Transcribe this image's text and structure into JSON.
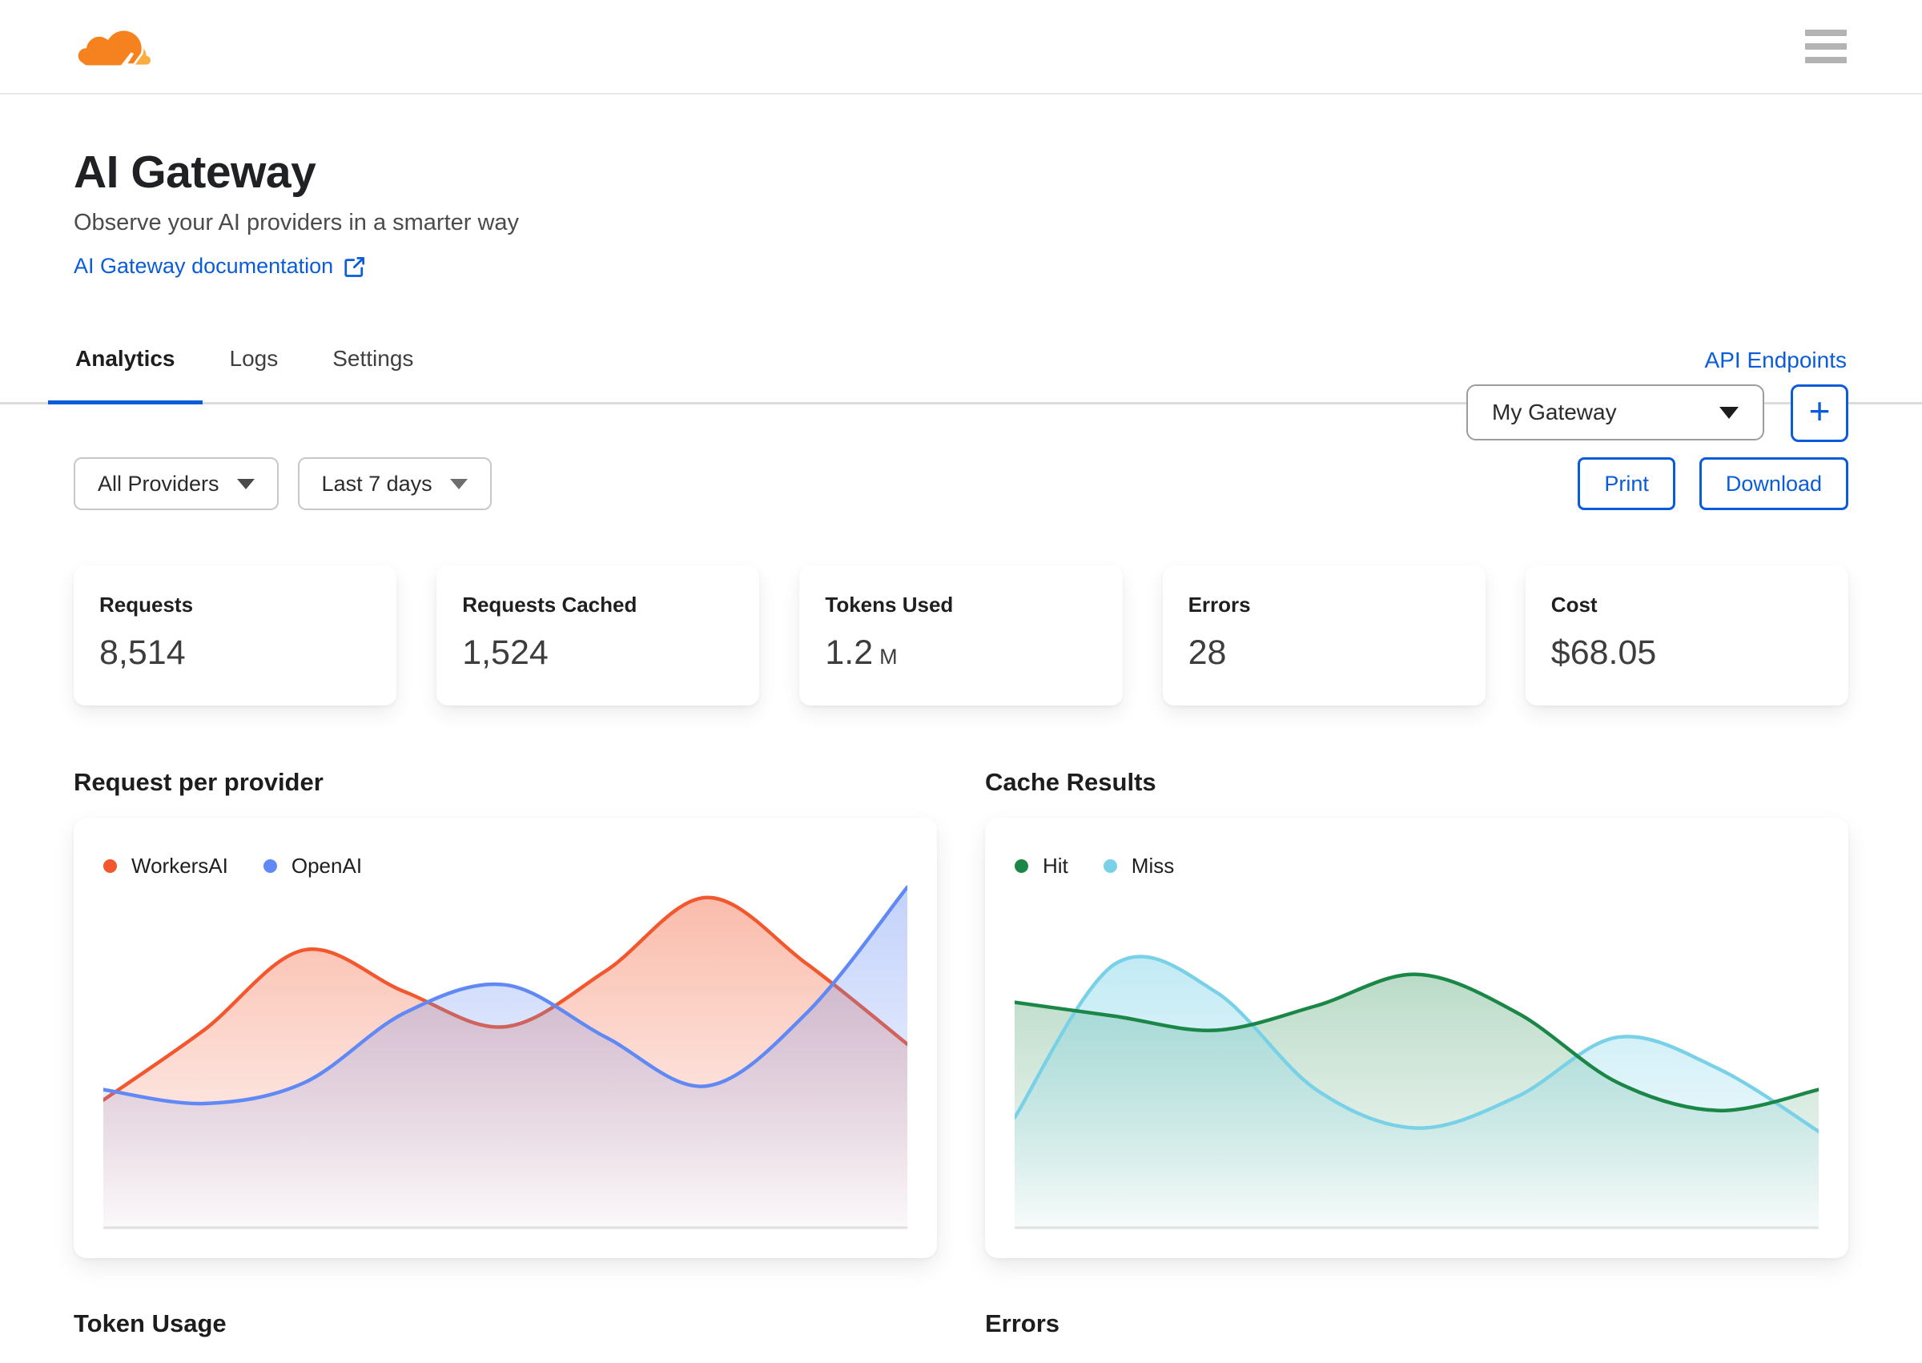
{
  "header": {
    "logo": "cloudflare-logo",
    "menu": "hamburger-menu"
  },
  "page": {
    "title": "AI Gateway",
    "subtitle": "Observe your AI providers in a smarter way",
    "doc_link_label": "AI Gateway documentation"
  },
  "gateway_selector": {
    "selected": "My Gateway"
  },
  "add_gateway_label": "+",
  "tabs": {
    "analytics": "Analytics",
    "logs": "Logs",
    "settings": "Settings",
    "api_endpoints": "API Endpoints"
  },
  "filters": {
    "providers": "All Providers",
    "date_range": "Last 7 days"
  },
  "actions": {
    "print": "Print",
    "download": "Download"
  },
  "stats": [
    {
      "label": "Requests",
      "value": "8,514",
      "suffix": ""
    },
    {
      "label": "Requests Cached",
      "value": "1,524",
      "suffix": ""
    },
    {
      "label": "Tokens Used",
      "value": "1.2",
      "suffix": "M"
    },
    {
      "label": "Errors",
      "value": "28",
      "suffix": ""
    },
    {
      "label": "Cost",
      "value": "$68.05",
      "suffix": ""
    }
  ],
  "sections": {
    "chart1": "Request per provider",
    "chart2": "Cache Results",
    "chart3": "Token Usage",
    "chart4": "Errors"
  },
  "colors": {
    "accent_blue": "#0b5cd9",
    "logo_orange": "#f6821f",
    "logo_light_orange": "#fbad41",
    "baseline_gray": "#e4e4e4"
  },
  "chart_data": [
    {
      "type": "area",
      "title": "Request per provider",
      "x": [
        0,
        1,
        2,
        3,
        4,
        5,
        6,
        7,
        8
      ],
      "axes_visible": false,
      "grid": false,
      "legend_position": "top-left",
      "ylim": [
        0,
        100
      ],
      "layer_order": [
        "fill0",
        "stroke0",
        "fill1",
        "stroke1"
      ],
      "series": [
        {
          "name": "WorkersAI",
          "color": "#f2572e",
          "fill_opacity": 0.4,
          "values": [
            37,
            57,
            80,
            68,
            58,
            74,
            95,
            76,
            53
          ]
        },
        {
          "name": "OpenAI",
          "color": "#6189f5",
          "fill_opacity": 0.38,
          "values": [
            40,
            36,
            42,
            62,
            70,
            55,
            41,
            62,
            98
          ]
        }
      ]
    },
    {
      "type": "area",
      "title": "Cache Results",
      "x": [
        0,
        1,
        2,
        3,
        4,
        5,
        6,
        7,
        8
      ],
      "axes_visible": false,
      "grid": false,
      "legend_position": "top-left",
      "ylim": [
        0,
        100
      ],
      "layer_order": [
        "fill0",
        "fill1",
        "stroke1",
        "stroke0"
      ],
      "series": [
        {
          "name": "Hit",
          "color": "#1b8747",
          "fill_opacity": 0.3,
          "values": [
            65,
            61,
            57,
            64,
            73,
            62,
            42,
            34,
            40
          ]
        },
        {
          "name": "Miss",
          "color": "#79d1e8",
          "fill_opacity": 0.45,
          "values": [
            32,
            76,
            68,
            40,
            29,
            38,
            55,
            46,
            28
          ]
        }
      ]
    }
  ]
}
